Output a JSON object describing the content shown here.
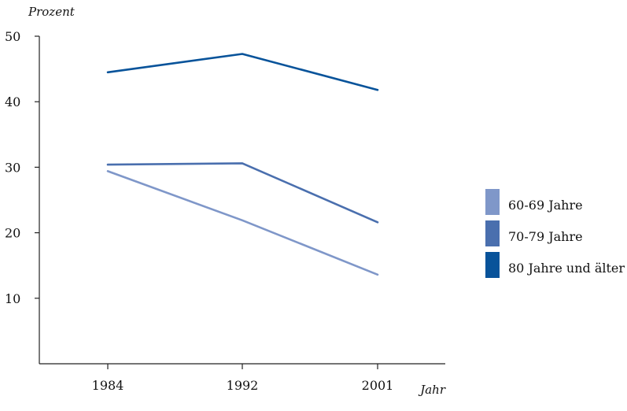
{
  "chart_data": {
    "type": "line",
    "ylabel": "Prozent",
    "xlabel": "Jahr",
    "categories": [
      "1984",
      "1992",
      "2001"
    ],
    "yticks": [
      "10",
      "20",
      "30",
      "40",
      "50"
    ],
    "ylim": [
      0,
      50
    ],
    "grid": false,
    "legend_position": "right",
    "series": [
      {
        "name": "60-69 Jahre",
        "color": "#7f97c9",
        "values": [
          29.4,
          21.9,
          13.6
        ]
      },
      {
        "name": "70-79 Jahre",
        "color": "#4a6fae",
        "values": [
          30.4,
          30.6,
          21.6
        ]
      },
      {
        "name": "80 Jahre und älter",
        "color": "#08539a",
        "values": [
          44.5,
          47.3,
          41.8
        ]
      }
    ]
  }
}
